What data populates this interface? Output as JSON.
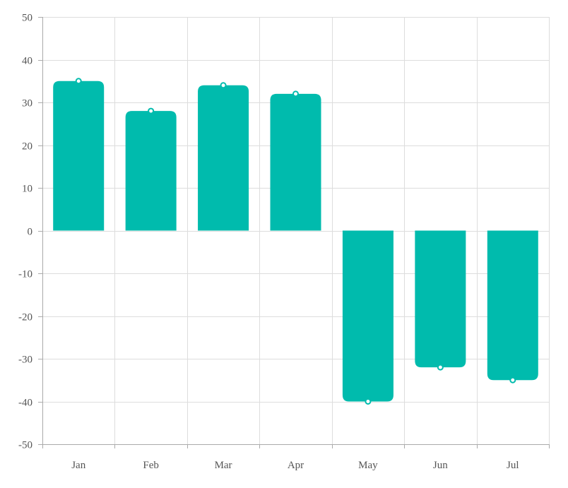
{
  "chart_data": {
    "type": "bar",
    "categories": [
      "Jan",
      "Feb",
      "Mar",
      "Apr",
      "May",
      "Jun",
      "Jul"
    ],
    "values": [
      35,
      28,
      34,
      32,
      -40,
      -32,
      -35
    ],
    "ylim": [
      -50,
      50
    ],
    "yticks": [
      50,
      40,
      30,
      20,
      10,
      0,
      -10,
      -20,
      -30,
      -40,
      -50
    ],
    "grid": true,
    "bar_color": "#00bbad",
    "marker_stroke": "#00bbad",
    "marker_fill": "#ffffff",
    "grid_color": "#dddddd",
    "axis_color": "#aaaaaa",
    "label_color": "#555555"
  }
}
